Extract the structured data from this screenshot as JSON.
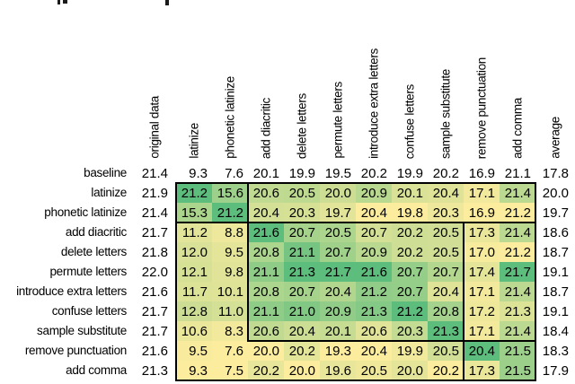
{
  "table": {
    "col_headers": [
      "original data",
      "latinize",
      "phonetic latinize",
      "add diacritic",
      "delete letters",
      "permute letters",
      "introduce extra letters",
      "confuse letters",
      "sample substitute",
      "remove punctuation",
      "add comma",
      "average"
    ],
    "rows": [
      {
        "label": "baseline",
        "original": "21.4",
        "values": [
          "9.3",
          "7.6",
          "20.1",
          "19.9",
          "19.5",
          "20.2",
          "19.9",
          "20.2",
          "16.9",
          "21.1"
        ],
        "average": "17.8",
        "colored": false
      },
      {
        "label": "latinize",
        "original": "21.9",
        "values": [
          "21.2",
          "15.6",
          "20.6",
          "20.5",
          "20.0",
          "20.9",
          "20.1",
          "20.4",
          "17.1",
          "21.4"
        ],
        "average": "20.0",
        "colored": true
      },
      {
        "label": "phonetic latinize",
        "original": "21.4",
        "values": [
          "15.3",
          "21.2",
          "20.4",
          "20.3",
          "19.7",
          "20.4",
          "19.8",
          "20.3",
          "16.9",
          "21.2"
        ],
        "average": "19.7",
        "colored": true
      },
      {
        "label": "add diacritic",
        "original": "21.7",
        "values": [
          "11.2",
          "8.8",
          "21.6",
          "20.7",
          "20.5",
          "20.7",
          "20.2",
          "20.5",
          "17.3",
          "21.4"
        ],
        "average": "18.6",
        "colored": true
      },
      {
        "label": "delete letters",
        "original": "21.8",
        "values": [
          "12.0",
          "9.5",
          "20.8",
          "21.1",
          "20.7",
          "20.9",
          "20.2",
          "20.5",
          "17.0",
          "21.2"
        ],
        "average": "18.7",
        "colored": true
      },
      {
        "label": "permute letters",
        "original": "22.0",
        "values": [
          "12.1",
          "9.8",
          "21.1",
          "21.3",
          "21.7",
          "21.6",
          "20.7",
          "20.7",
          "17.4",
          "21.7"
        ],
        "average": "19.1",
        "colored": true
      },
      {
        "label": "introduce extra letters",
        "original": "21.6",
        "values": [
          "11.7",
          "10.1",
          "20.8",
          "20.7",
          "20.4",
          "21.2",
          "20.7",
          "20.4",
          "17.1",
          "21.4"
        ],
        "average": "18.7",
        "colored": true
      },
      {
        "label": "confuse letters",
        "original": "21.7",
        "values": [
          "12.8",
          "11.0",
          "21.1",
          "21.0",
          "20.9",
          "21.3",
          "21.2",
          "20.8",
          "17.2",
          "21.3"
        ],
        "average": "19.1",
        "colored": true
      },
      {
        "label": "sample substitute",
        "original": "21.7",
        "values": [
          "10.6",
          "8.3",
          "20.6",
          "20.4",
          "20.1",
          "20.6",
          "20.3",
          "21.3",
          "17.1",
          "21.4"
        ],
        "average": "18.4",
        "colored": true
      },
      {
        "label": "remove punctuation",
        "original": "21.6",
        "values": [
          "9.5",
          "7.6",
          "20.0",
          "20.2",
          "19.3",
          "20.4",
          "19.9",
          "20.5",
          "20.4",
          "21.5"
        ],
        "average": "18.3",
        "colored": true
      },
      {
        "label": "add comma",
        "original": "21.3",
        "values": [
          "9.3",
          "7.5",
          "20.2",
          "20.0",
          "19.6",
          "20.5",
          "20.0",
          "20.2",
          "17.3",
          "21.5"
        ],
        "average": "17.9",
        "colored": true
      }
    ],
    "colors": {
      "heat_low": "#FCEC9E",
      "heat_high": "#5CBD7D",
      "border": "#000000"
    },
    "heat_normalization": "per-column over colored rows",
    "group_boxes": [
      {
        "name": "outer",
        "rows": [
          0,
          9
        ],
        "cols": [
          0,
          9
        ]
      },
      {
        "name": "latinize-rows-band",
        "rows": [
          0,
          1
        ],
        "cols": [
          0,
          9
        ]
      },
      {
        "name": "latinize-group",
        "rows": [
          0,
          1
        ],
        "cols": [
          0,
          1
        ]
      },
      {
        "name": "letter-level-group",
        "rows": [
          2,
          7
        ],
        "cols": [
          2,
          7
        ]
      },
      {
        "name": "punctuation-group",
        "rows": [
          8,
          9
        ],
        "cols": [
          8,
          9
        ]
      }
    ]
  },
  "chart_data": {
    "type": "heatmap",
    "title": "",
    "columns": [
      "original data",
      "latinize",
      "phonetic latinize",
      "add diacritic",
      "delete letters",
      "permute letters",
      "introduce extra letters",
      "confuse letters",
      "sample substitute",
      "remove punctuation",
      "add comma",
      "average"
    ],
    "rows": [
      "baseline",
      "latinize",
      "phonetic latinize",
      "add diacritic",
      "delete letters",
      "permute letters",
      "introduce extra letters",
      "confuse letters",
      "sample substitute",
      "remove punctuation",
      "add comma"
    ],
    "values": [
      [
        21.4,
        9.3,
        7.6,
        20.1,
        19.9,
        19.5,
        20.2,
        19.9,
        20.2,
        16.9,
        21.1,
        17.8
      ],
      [
        21.9,
        21.2,
        15.6,
        20.6,
        20.5,
        20.0,
        20.9,
        20.1,
        20.4,
        17.1,
        21.4,
        20.0
      ],
      [
        21.4,
        15.3,
        21.2,
        20.4,
        20.3,
        19.7,
        20.4,
        19.8,
        20.3,
        16.9,
        21.2,
        19.7
      ],
      [
        21.7,
        11.2,
        8.8,
        21.6,
        20.7,
        20.5,
        20.7,
        20.2,
        20.5,
        17.3,
        21.4,
        18.6
      ],
      [
        21.8,
        12.0,
        9.5,
        20.8,
        21.1,
        20.7,
        20.9,
        20.2,
        20.5,
        17.0,
        21.2,
        18.7
      ],
      [
        22.0,
        12.1,
        9.8,
        21.1,
        21.3,
        21.7,
        21.6,
        20.7,
        20.7,
        17.4,
        21.7,
        19.1
      ],
      [
        21.6,
        11.7,
        10.1,
        20.8,
        20.7,
        20.4,
        21.2,
        20.7,
        20.4,
        17.1,
        21.4,
        18.7
      ],
      [
        21.7,
        12.8,
        11.0,
        21.1,
        21.0,
        20.9,
        21.3,
        21.2,
        20.8,
        17.2,
        21.3,
        19.1
      ],
      [
        21.7,
        10.6,
        8.3,
        20.6,
        20.4,
        20.1,
        20.6,
        20.3,
        21.3,
        17.1,
        21.4,
        18.4
      ],
      [
        21.6,
        9.5,
        7.6,
        20.0,
        20.2,
        19.3,
        20.4,
        19.9,
        20.5,
        20.4,
        21.5,
        18.3
      ],
      [
        21.3,
        9.3,
        7.5,
        20.2,
        20.0,
        19.6,
        20.5,
        20.0,
        20.2,
        17.3,
        21.5,
        17.9
      ]
    ],
    "color_scale": {
      "low": "#FCEC9E",
      "high": "#5CBD7D",
      "normalization": "per-column",
      "uncolored": [
        "original data column",
        "average column",
        "baseline row"
      ]
    },
    "legend": "none",
    "grid": "group outline boxes only"
  }
}
